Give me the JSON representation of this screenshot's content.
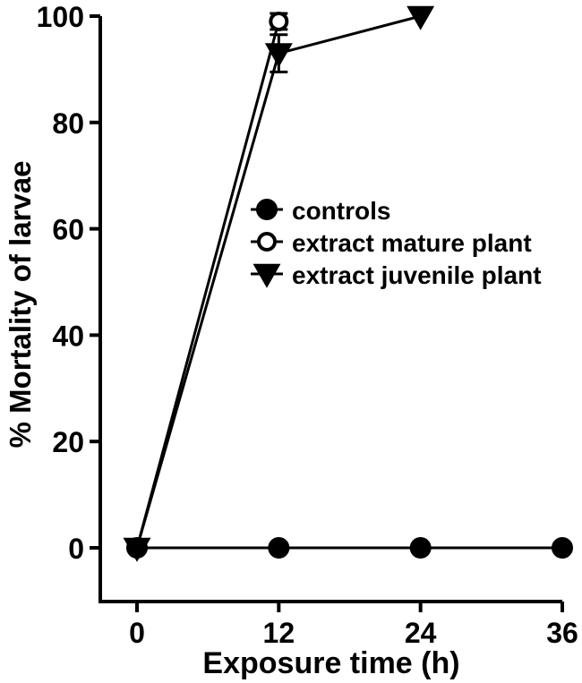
{
  "chart_data": {
    "type": "line",
    "xlabel": "Exposure time (h)",
    "ylabel": "% Mortality of larvae",
    "xlim": [
      -2.5,
      36
    ],
    "ylim": [
      -10,
      100
    ],
    "xticks": [
      0,
      12,
      24,
      36
    ],
    "yticks": [
      0,
      20,
      40,
      60,
      80,
      100
    ],
    "grid": false,
    "legend_position": "center",
    "series": [
      {
        "name": "controls",
        "marker": "filled-circle",
        "x": [
          0,
          12,
          24,
          36
        ],
        "y": [
          0,
          0,
          0,
          0
        ],
        "err": [
          0,
          0,
          0,
          0
        ]
      },
      {
        "name": "extract mature plant",
        "marker": "open-circle",
        "x": [
          0,
          12
        ],
        "y": [
          0,
          99
        ],
        "err": [
          0,
          1.5
        ]
      },
      {
        "name": "extract juvenile plant",
        "marker": "filled-triangle-down",
        "x": [
          0,
          12,
          24
        ],
        "y": [
          0,
          93,
          100
        ],
        "err": [
          0,
          3.5,
          0
        ]
      }
    ]
  }
}
